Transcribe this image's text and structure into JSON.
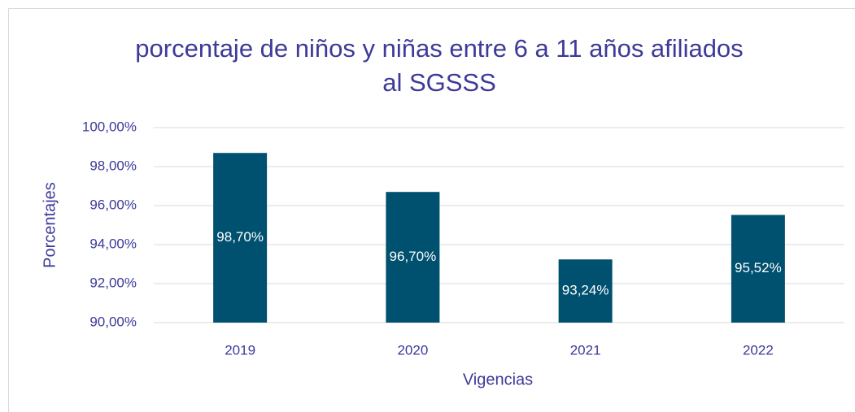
{
  "chart_data": {
    "type": "bar",
    "title": [
      "porcentaje de niños y niñas entre 6 a 11 años afiliados",
      "al SGSSS"
    ],
    "x_label": "Vigencias",
    "y_label": "Porcentajes",
    "categories": [
      "2019",
      "2020",
      "2021",
      "2022"
    ],
    "values": [
      98.7,
      96.7,
      93.24,
      95.52
    ],
    "value_labels": [
      "98,70%",
      "96,70%",
      "93,24%",
      "95,52%"
    ],
    "color": "#00506f",
    "ylim": [
      90,
      100
    ],
    "yticks": [
      {
        "value": 90,
        "label": "90,00%"
      },
      {
        "value": 92,
        "label": "92,00%"
      },
      {
        "value": 94,
        "label": "94,00%"
      },
      {
        "value": 96,
        "label": "96,00%"
      },
      {
        "value": 98,
        "label": "98,00%"
      },
      {
        "value": 100,
        "label": "100,00%"
      }
    ],
    "grid": true
  }
}
